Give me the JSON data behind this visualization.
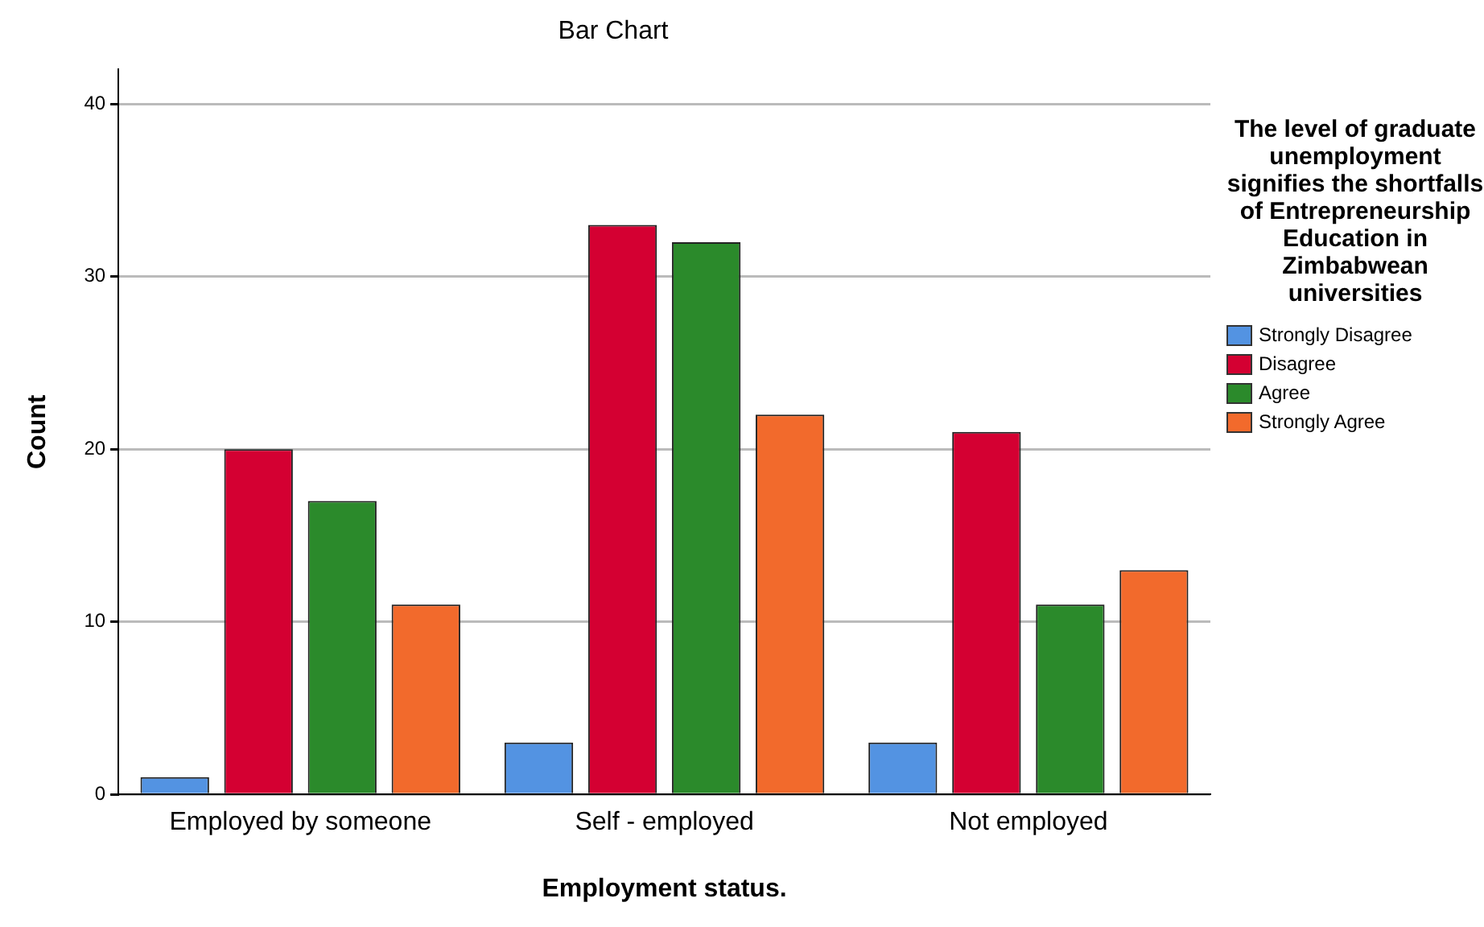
{
  "chart_data": {
    "type": "bar",
    "title": "Bar Chart",
    "xlabel": "Employment status.",
    "ylabel": "Count",
    "legend_title": "The level of graduate unemployment signifies the shortfalls of Entrepreneurship Education in Zimbabwean universities",
    "categories": [
      "Employed by someone",
      "Self - employed",
      "Not employed"
    ],
    "series": [
      {
        "name": "Strongly Disagree",
        "color": "#5393e2",
        "values": [
          1,
          3,
          3
        ]
      },
      {
        "name": "Disagree",
        "color": "#d40032",
        "values": [
          20,
          33,
          21
        ]
      },
      {
        "name": "Agree",
        "color": "#2b8a2b",
        "values": [
          17,
          32,
          11
        ]
      },
      {
        "name": "Strongly Agree",
        "color": "#f26a2c",
        "values": [
          11,
          22,
          13
        ]
      }
    ],
    "ylim": [
      0,
      42
    ],
    "yticks": [
      0,
      10,
      20,
      30,
      40
    ],
    "grid": "y",
    "legend": "right"
  }
}
